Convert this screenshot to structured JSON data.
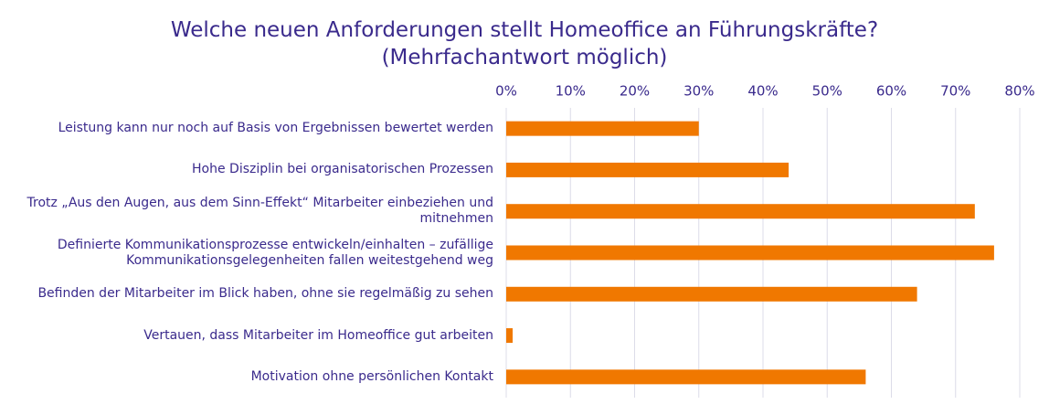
{
  "chart_data": {
    "type": "bar",
    "orientation": "horizontal",
    "title": "Welche neuen Anforderungen stellt Homeoffice an Führungskräfte?",
    "subtitle": "(Mehrfachantwort möglich)",
    "categories": [
      "Leistung kann nur noch auf Basis von Ergebnissen bewertet werden",
      "Hohe Disziplin bei organisatorischen Prozessen",
      "Trotz „Aus den Augen, aus dem Sinn-Effekt“ Mitarbeiter einbeziehen und mitnehmen",
      "Definierte Kommunikationsprozesse entwickeln/einhalten – zufällige Kommunikationsgelegenheiten fallen weitestgehend weg",
      "Befinden der Mitarbeiter im Blick haben, ohne sie regelmäßig zu sehen",
      "Vertauen, dass Mitarbeiter im Homeoffice gut arbeiten",
      "Motivation ohne persönlichen Kontakt"
    ],
    "values": [
      30,
      44,
      73,
      76,
      64,
      1,
      56
    ],
    "color": "#f07800",
    "xlim": [
      0,
      80
    ],
    "xticks": [
      {
        "value": 0,
        "label": "0%"
      },
      {
        "value": 10,
        "label": "10%"
      },
      {
        "value": 20,
        "label": "20%"
      },
      {
        "value": 30,
        "label": "30%"
      },
      {
        "value": 40,
        "label": "40%"
      },
      {
        "value": 50,
        "label": "50%"
      },
      {
        "value": 60,
        "label": "60%"
      },
      {
        "value": 70,
        "label": "70%"
      },
      {
        "value": 80,
        "label": "80%"
      }
    ],
    "grid": true
  }
}
